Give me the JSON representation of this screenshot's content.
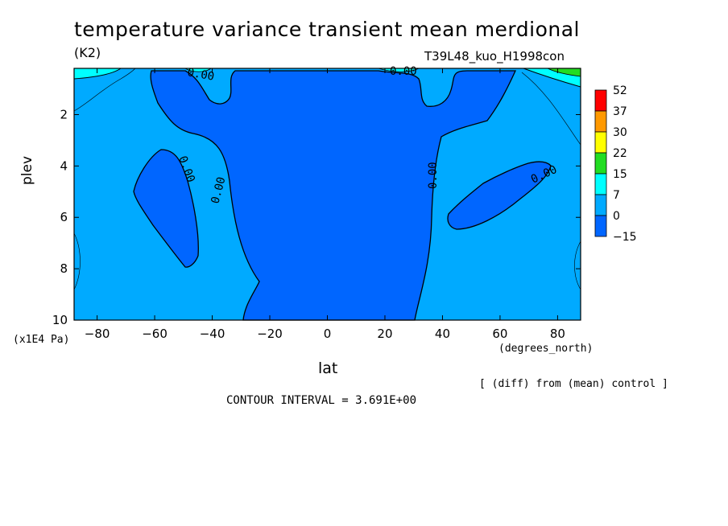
{
  "chart_data": {
    "type": "heatmap",
    "title": "temperature variance transient mean merdional",
    "units": "(K2)",
    "run_label": "T39L48_kuo_H1998con",
    "xlabel": "lat",
    "x_units": "(degrees_north)",
    "ylabel": "plev",
    "y_units": "(x1E4 Pa)",
    "x_ticks": [
      "-80",
      "-60",
      "-40",
      "-20",
      "0",
      "20",
      "40",
      "60",
      "80"
    ],
    "y_ticks": [
      "2",
      "4",
      "6",
      "8",
      "10"
    ],
    "xlim": [
      -88,
      88
    ],
    "ylim": [
      10,
      0.2
    ],
    "colorbar": {
      "labels": [
        "52",
        "37",
        "30",
        "22",
        "15",
        "7",
        "0",
        "-15"
      ],
      "colors": [
        "#ff0000",
        "#ff9900",
        "#ffff00",
        "#22dd22",
        "#00ffff",
        "#00aaff",
        "#0066ff"
      ]
    },
    "contour_labels": [
      "0.00",
      "0.00",
      "0.00",
      "0.00",
      "0.00",
      "0.00",
      "0.00"
    ],
    "contour_interval": "CONTOUR INTERVAL = 3.691E+00",
    "note": "[ (diff) from (mean) control ]"
  }
}
